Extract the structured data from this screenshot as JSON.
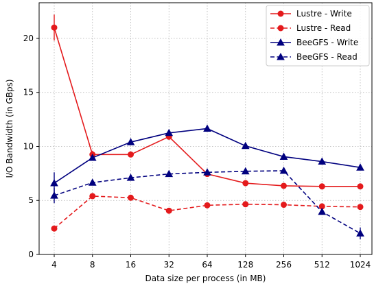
{
  "chart_data": {
    "type": "line",
    "xlabel": "Data size per process (in MB)",
    "ylabel": "I/O Bandwidth (in GBps)",
    "x_scale": "log2",
    "categories": [
      "4",
      "8",
      "16",
      "32",
      "64",
      "128",
      "256",
      "512",
      "1024"
    ],
    "ylim": [
      0,
      23.3
    ],
    "yticks": [
      "0",
      "5",
      "10",
      "15",
      "20"
    ],
    "grid": true,
    "legend_position": "top-right",
    "series": [
      {
        "name": "Lustre - Write",
        "color": "#e41a1c",
        "linestyle": "solid",
        "marker": "circle",
        "values": [
          21.0,
          9.25,
          9.25,
          10.9,
          7.45,
          6.6,
          6.35,
          6.3,
          6.3
        ],
        "error": [
          1.2,
          0.35,
          0.15,
          0.15,
          0.1,
          0.1,
          0.1,
          0.1,
          0.1
        ]
      },
      {
        "name": "Lustre - Read",
        "color": "#e41a1c",
        "linestyle": "dashed",
        "marker": "circle",
        "values": [
          2.4,
          5.4,
          5.25,
          4.05,
          4.55,
          4.65,
          4.6,
          4.45,
          4.4
        ],
        "error": [
          0.15,
          0.2,
          0.1,
          0.1,
          0.1,
          0.1,
          0.1,
          0.1,
          0.1
        ]
      },
      {
        "name": "BeeGFS - Write",
        "color": "#00007f",
        "linestyle": "solid",
        "marker": "triangle",
        "values": [
          6.6,
          8.95,
          10.4,
          11.25,
          11.65,
          10.05,
          9.05,
          8.6,
          8.05
        ],
        "error": [
          1.0,
          0.2,
          0.1,
          0.1,
          0.1,
          0.1,
          0.1,
          0.1,
          0.1
        ]
      },
      {
        "name": "BeeGFS - Read",
        "color": "#00007f",
        "linestyle": "dashed",
        "marker": "triangle",
        "values": [
          5.45,
          6.65,
          7.1,
          7.45,
          7.6,
          7.7,
          7.75,
          3.95,
          1.95
        ],
        "error": [
          0.7,
          0.1,
          0.1,
          0.1,
          0.1,
          0.1,
          0.1,
          0.2,
          0.55
        ]
      }
    ]
  }
}
